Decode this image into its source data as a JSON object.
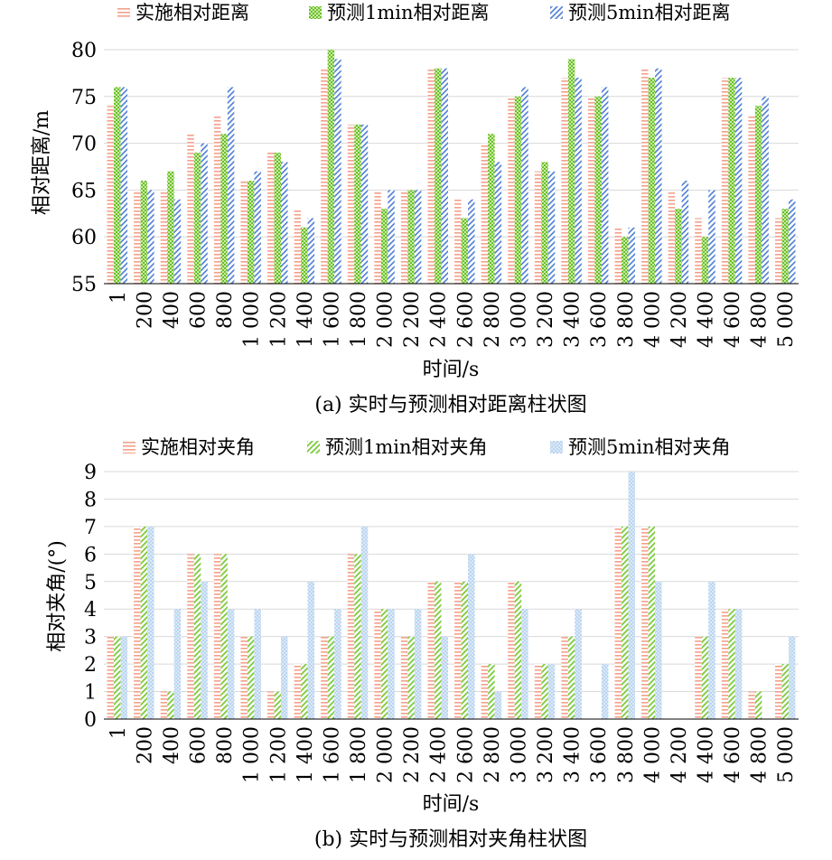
{
  "patterns": {
    "p_hline": {
      "color": "#f4a08b"
    },
    "p_green_check": {
      "color": "#6cbf2a"
    },
    "p_blue_diag": {
      "color": "#4e7fd4"
    },
    "p_green_diag": {
      "color": "#7ccb3a"
    },
    "p_blue_dots": {
      "color": "#a4c7ea"
    }
  },
  "chart_data": [
    {
      "type": "bar",
      "caption": "(a) 实时与预测相对距离柱状图",
      "xlabel": "时间/s",
      "ylabel": "相对距离/m",
      "ylim": [
        55,
        80
      ],
      "yticks": [
        "55",
        "60",
        "65",
        "70",
        "75",
        "80"
      ],
      "grid": true,
      "legend_position": "top",
      "categories": [
        "1",
        "200",
        "400",
        "600",
        "800",
        "1 000",
        "1 200",
        "1 400",
        "1 600",
        "1 800",
        "2 000",
        "2 200",
        "2 400",
        "2 600",
        "2 800",
        "3 000",
        "3 200",
        "3 400",
        "3 600",
        "3 800",
        "4 000",
        "4 200",
        "4 400",
        "4 600",
        "4 800",
        "5 000"
      ],
      "series": [
        {
          "name": "实施相对距离",
          "values": [
            74,
            65,
            65,
            71,
            73,
            66,
            69,
            63,
            78,
            72,
            65,
            65,
            78,
            64,
            70,
            75,
            67,
            77,
            75,
            61,
            78,
            65,
            62,
            77,
            73,
            62
          ]
        },
        {
          "name": "预测1min相对距离",
          "values": [
            76,
            66,
            67,
            69,
            71,
            66,
            69,
            61,
            80,
            72,
            63,
            65,
            78,
            62,
            71,
            75,
            68,
            79,
            75,
            60,
            77,
            63,
            60,
            77,
            74,
            63
          ]
        },
        {
          "name": "预测5min相对距离",
          "values": [
            76,
            65,
            64,
            70,
            76,
            67,
            68,
            62,
            79,
            72,
            65,
            65,
            78,
            64,
            68,
            76,
            67,
            77,
            76,
            61,
            78,
            66,
            65,
            77,
            75,
            64
          ]
        }
      ]
    },
    {
      "type": "bar",
      "caption": "(b) 实时与预测相对夹角柱状图",
      "xlabel": "时间/s",
      "ylabel": "相对夹角/(°)",
      "ylim": [
        0,
        9
      ],
      "yticks": [
        "0",
        "1",
        "2",
        "3",
        "4",
        "5",
        "6",
        "7",
        "8",
        "9"
      ],
      "grid": true,
      "legend_position": "top",
      "categories": [
        "1",
        "200",
        "400",
        "600",
        "800",
        "1 000",
        "1 200",
        "1 400",
        "1 600",
        "1 800",
        "2 000",
        "2 200",
        "2 400",
        "2 600",
        "2 800",
        "3 000",
        "3 200",
        "3 400",
        "3 600",
        "3 800",
        "4 000",
        "4 200",
        "4 400",
        "4 600",
        "4 800",
        "5 000"
      ],
      "series": [
        {
          "name": "实施相对夹角",
          "values": [
            3,
            7,
            1,
            6,
            6,
            3,
            1,
            2,
            3,
            6,
            4,
            3,
            5,
            5,
            2,
            5,
            2,
            3,
            0,
            7,
            7,
            0,
            3,
            4,
            1,
            2
          ]
        },
        {
          "name": "预测1min相对夹角",
          "values": [
            3,
            7,
            1,
            6,
            6,
            3,
            1,
            2,
            3,
            6,
            4,
            3,
            5,
            5,
            2,
            5,
            2,
            3,
            0,
            7,
            7,
            0,
            3,
            4,
            1,
            2
          ]
        },
        {
          "name": "预测5min相对夹角",
          "values": [
            3,
            7,
            4,
            5,
            4,
            4,
            3,
            5,
            4,
            7,
            4,
            4,
            3,
            6,
            1,
            4,
            2,
            4,
            2,
            9,
            5,
            0,
            5,
            4,
            0,
            3
          ]
        }
      ]
    }
  ]
}
